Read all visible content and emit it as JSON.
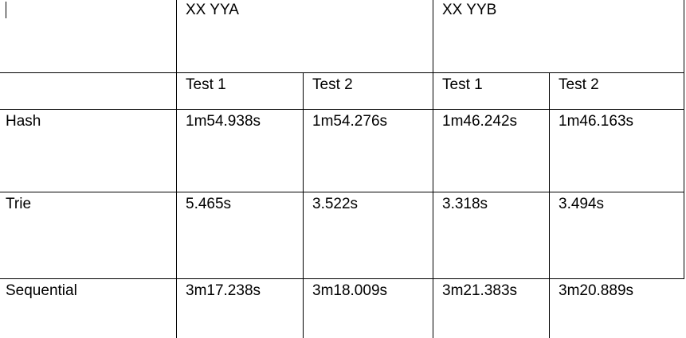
{
  "table": {
    "groups": [
      "XX YYA",
      "XX YYB"
    ],
    "subheaders": [
      "Test 1",
      "Test 2",
      "Test 1",
      "Test 2"
    ],
    "rows": [
      {
        "label": "Hash",
        "values": [
          "1m54.938s",
          "1m54.276s",
          "1m46.242s",
          "1m46.163s"
        ]
      },
      {
        "label": "Trie",
        "values": [
          "5.465s",
          "3.522s",
          "3.318s",
          "3.494s"
        ]
      },
      {
        "label": "Sequential",
        "values": [
          "3m17.238s",
          "3m18.009s",
          "3m21.383s",
          "3m20.889s"
        ]
      }
    ]
  }
}
